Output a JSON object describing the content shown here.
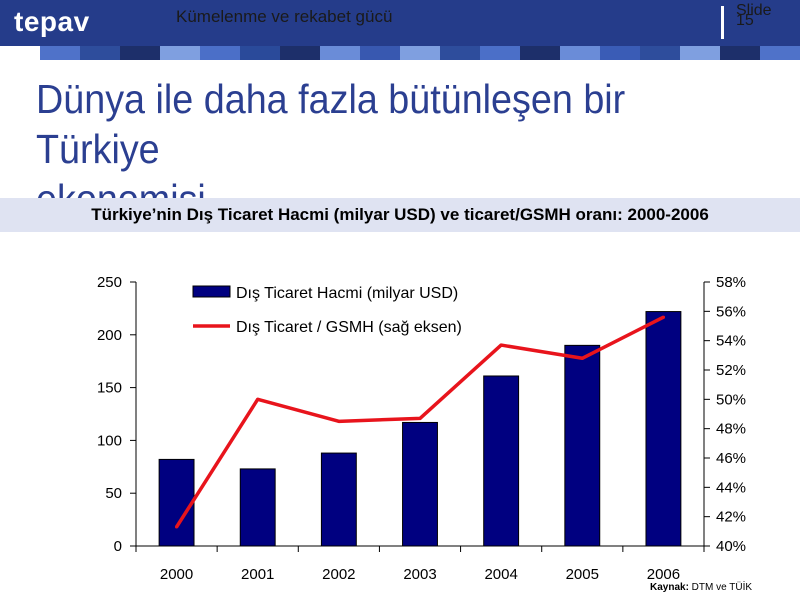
{
  "header": {
    "logo_text": "tepav",
    "title": "Kümelenme ve rekabet gücü",
    "slide_label": "Slide",
    "slide_number": "15"
  },
  "slide": {
    "title_line1": "Dünya ile daha fazla bütünleşen bir Türkiye",
    "title_line2": "ekonomisi...",
    "chart_title": "Türkiye’nin Dış Ticaret Hacmi (milyar USD) ve ticaret/GSMH oranı: 2000-2006",
    "source_label": "Kaynak:",
    "source_text": " DTM ve TÜİK"
  },
  "colors": {
    "brand_blue": "#253c8a",
    "title_blue": "#2b3f91",
    "bar_color": "#000080",
    "line_color": "#e8141c",
    "stripe": [
      "#ffffff",
      "#4f72c9",
      "#2e4d9c",
      "#1d2f6a",
      "#7f9fe0",
      "#4b6fc8",
      "#2a4a9a",
      "#1d2f6a",
      "#6a8cd8",
      "#3858b0",
      "#7f9fe0",
      "#2e4d9c",
      "#4b6fc8",
      "#1d2f6a",
      "#6a8cd8",
      "#3a5cb6",
      "#2e4d9c",
      "#7f9fe0",
      "#1d2f6a",
      "#4f72c9"
    ]
  },
  "chart_data": {
    "type": "bar",
    "categories": [
      "2000",
      "2001",
      "2002",
      "2003",
      "2004",
      "2005",
      "2006"
    ],
    "series": [
      {
        "name": "Dış Ticaret Hacmi (milyar USD)",
        "type": "bar",
        "axis": "left",
        "values": [
          82,
          73,
          88,
          117,
          161,
          190,
          222
        ]
      },
      {
        "name": "Dış Ticaret / GSMH (sağ eksen)",
        "type": "line",
        "axis": "right",
        "values": [
          41.3,
          50.0,
          48.5,
          48.7,
          53.7,
          52.8,
          55.6
        ]
      }
    ],
    "y_left": {
      "min": 0,
      "max": 250,
      "ticks": [
        "0",
        "50",
        "100",
        "150",
        "200",
        "250"
      ]
    },
    "y_right": {
      "min": 40,
      "max": 58,
      "ticks": [
        "40%",
        "42%",
        "44%",
        "46%",
        "48%",
        "50%",
        "52%",
        "54%",
        "56%",
        "58%"
      ]
    },
    "grid": false,
    "legend_position": "top-left"
  }
}
